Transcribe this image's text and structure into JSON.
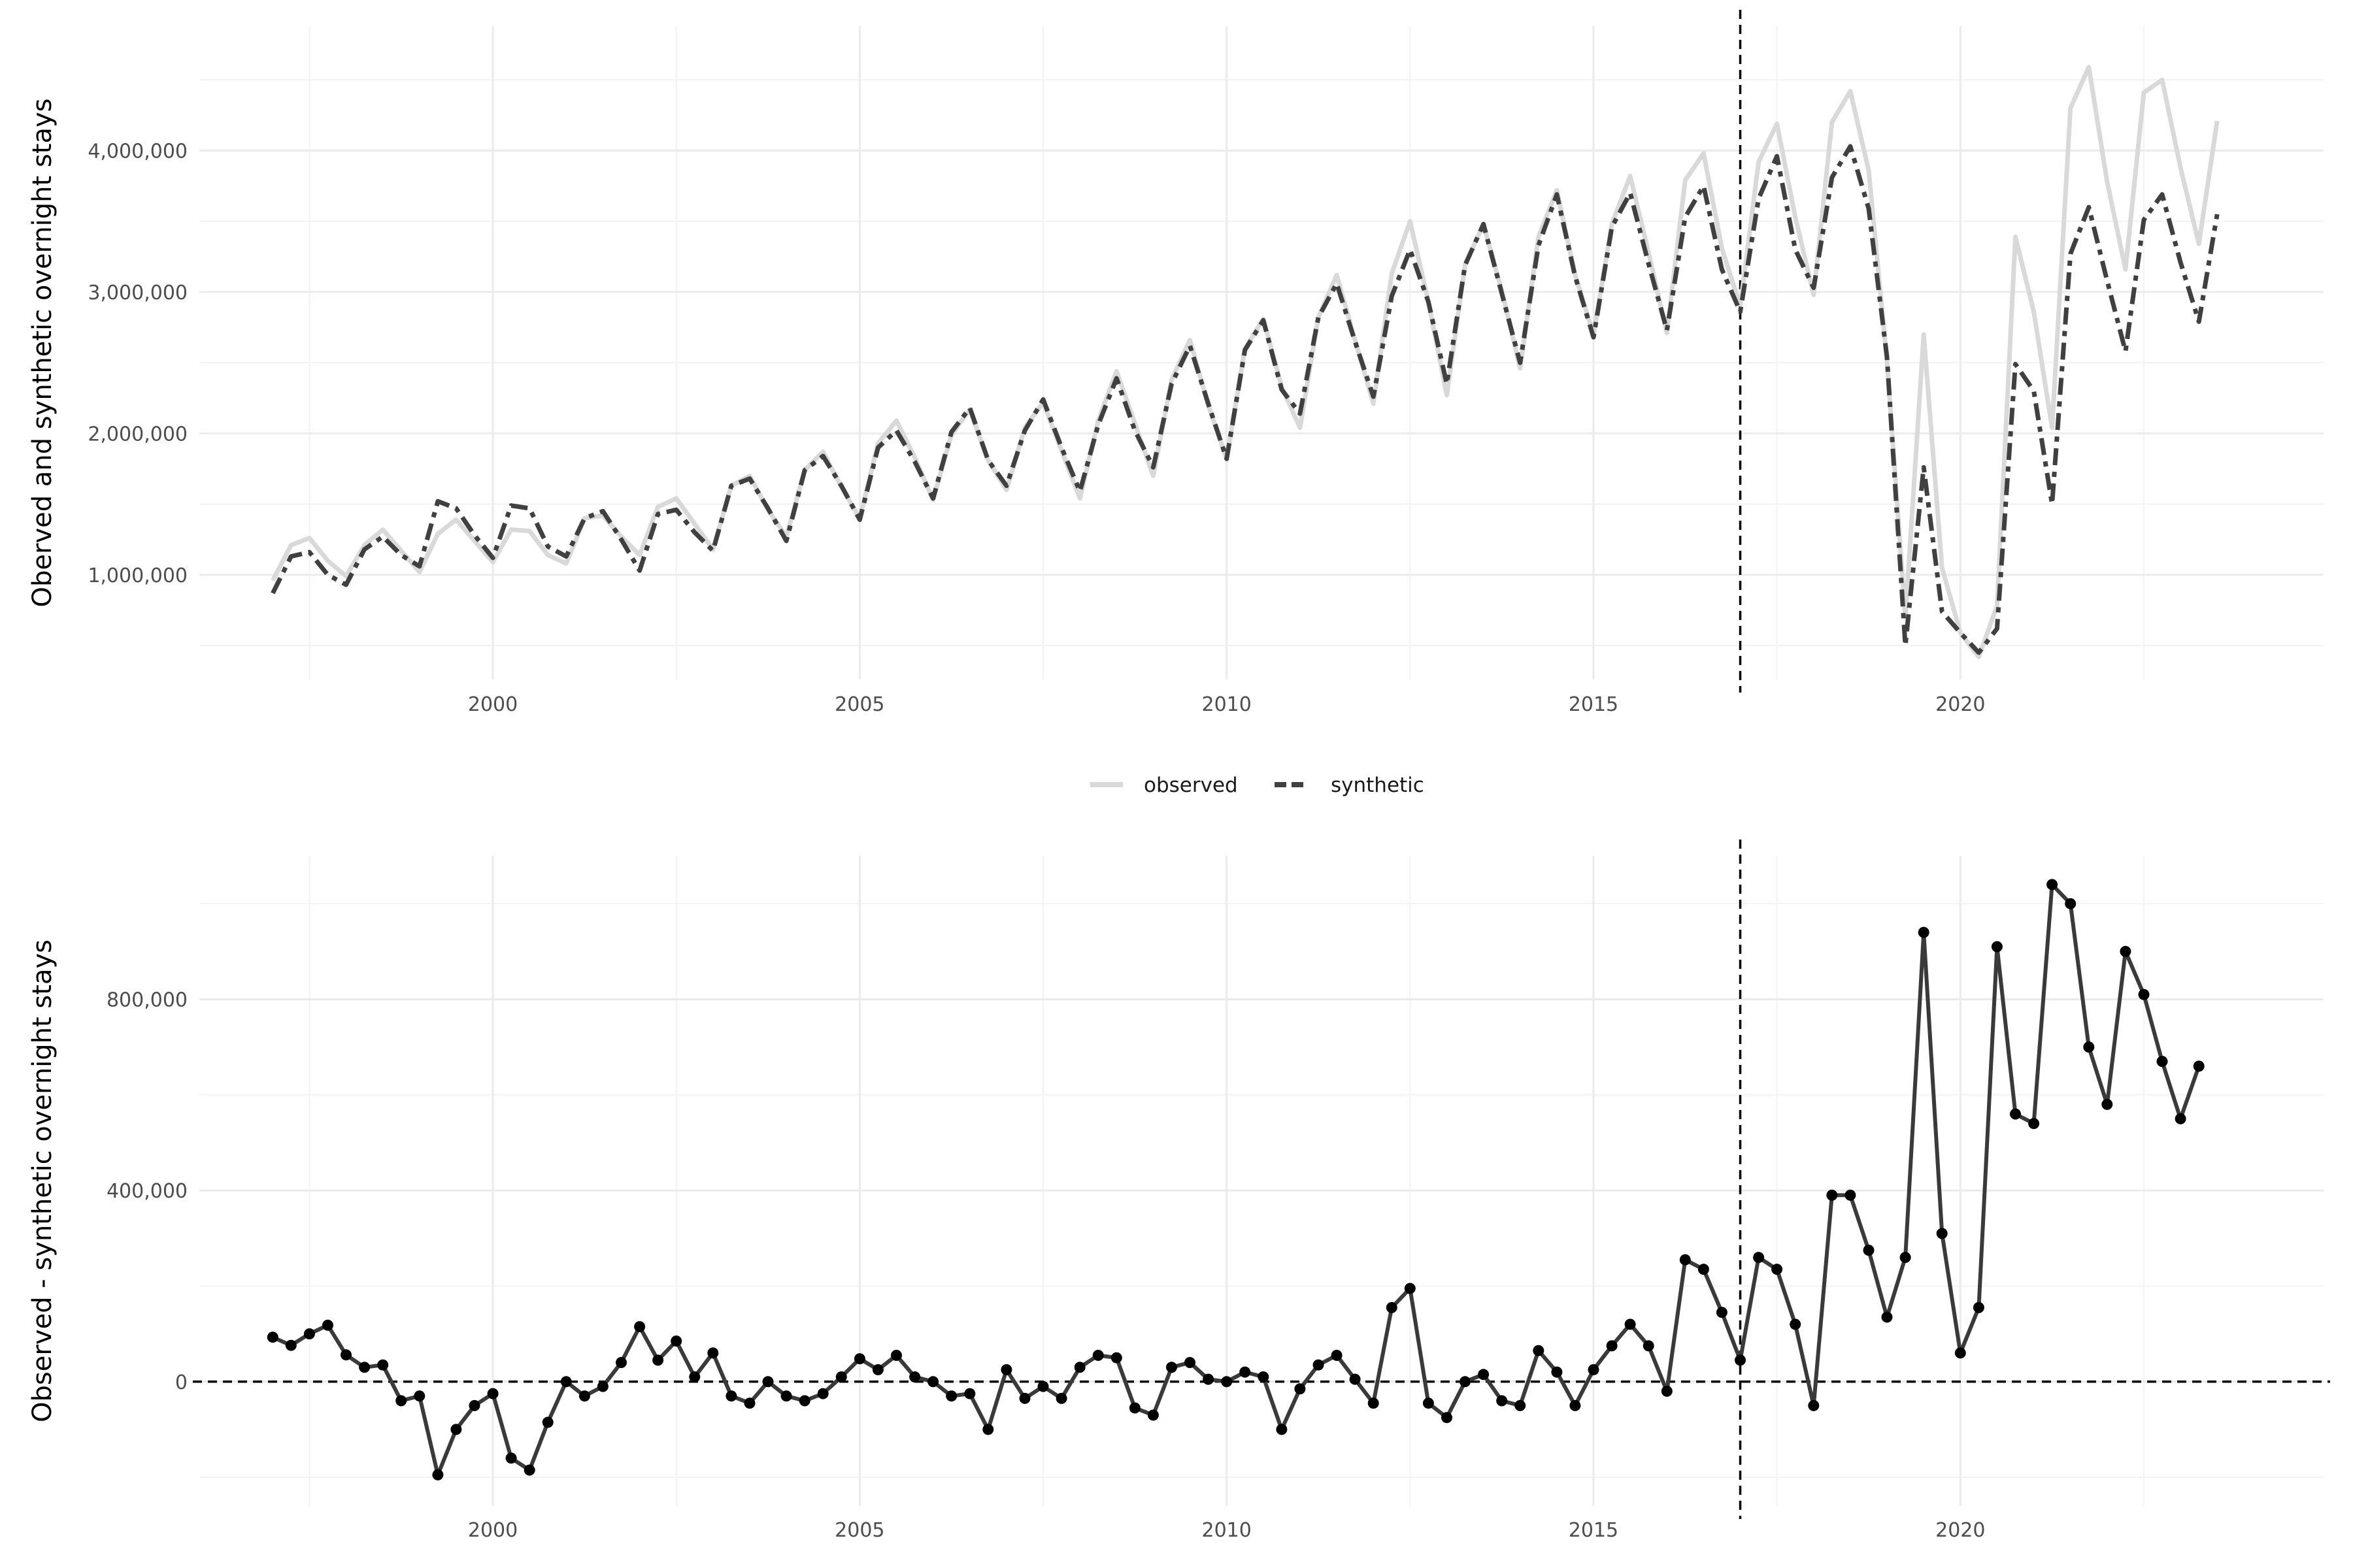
{
  "colors": {
    "observed": "#d9d9d9",
    "synthetic": "#404040",
    "difference": "#3a3a3a",
    "points": "#000000",
    "grid_major": "#ebebeb",
    "grid_minor": "#f3f3f3",
    "reference_line": "#000000",
    "tick_text": "#4d4d4d",
    "axis_title": "#000000"
  },
  "legend": {
    "items": [
      {
        "key": "observed",
        "label": "observed"
      },
      {
        "key": "synthetic",
        "label": "synthetic"
      }
    ],
    "position": "between-panels"
  },
  "chart_data": [
    {
      "type": "line",
      "title": "",
      "xlabel": "",
      "ylabel": "Oberved and synthetic overnight stays",
      "xlim": [
        1996.0,
        2024.95
      ],
      "ylim": [
        260000,
        4880000
      ],
      "grid": true,
      "x_ticks": [
        {
          "value": 2000,
          "label": "2000"
        },
        {
          "value": 2005,
          "label": "2005"
        },
        {
          "value": 2010,
          "label": "2010"
        },
        {
          "value": 2015,
          "label": "2015"
        },
        {
          "value": 2020,
          "label": "2020"
        }
      ],
      "y_ticks": [
        {
          "value": 1000000,
          "label": "1,000,000"
        },
        {
          "value": 2000000,
          "label": "2,000,000"
        },
        {
          "value": 3000000,
          "label": "3,000,000"
        },
        {
          "value": 4000000,
          "label": "4,000,000"
        }
      ],
      "vline": 2017.0,
      "x_start": 1997.0,
      "x_step": 0.25,
      "series": [
        {
          "name": "observed",
          "style": "solid",
          "values": [
            960000,
            1210000,
            1260000,
            1100000,
            990000,
            1210000,
            1320000,
            1170000,
            1020000,
            1290000,
            1390000,
            1240000,
            1090000,
            1320000,
            1310000,
            1140000,
            1080000,
            1400000,
            1420000,
            1270000,
            1140000,
            1480000,
            1540000,
            1360000,
            1180000,
            1630000,
            1700000,
            1460000,
            1270000,
            1740000,
            1870000,
            1620000,
            1400000,
            1930000,
            2090000,
            1830000,
            1530000,
            1990000,
            2170000,
            1810000,
            1600000,
            2040000,
            2220000,
            1880000,
            1540000,
            2090000,
            2440000,
            2070000,
            1700000,
            2380000,
            2660000,
            2200000,
            1820000,
            2600000,
            2810000,
            2330000,
            2040000,
            2820000,
            3120000,
            2660000,
            2210000,
            3130000,
            3500000,
            2930000,
            2270000,
            3190000,
            3480000,
            3010000,
            2460000,
            3390000,
            3720000,
            3120000,
            2700000,
            3480000,
            3820000,
            3280000,
            2710000,
            3790000,
            3980000,
            3310000,
            2900000,
            3920000,
            4190000,
            3530000,
            2980000,
            4200000,
            4420000,
            3860000,
            2510000,
            700000,
            2700000,
            1050000,
            590000,
            420000,
            780000,
            3390000,
            2860000,
            2040000,
            4300000,
            4590000,
            3780000,
            3160000,
            4410000,
            4500000,
            3880000,
            3340000,
            4210000
          ]
        },
        {
          "name": "synthetic",
          "style": "dashed",
          "values": [
            870000,
            1130000,
            1160000,
            1000000,
            930000,
            1180000,
            1270000,
            1140000,
            1060000,
            1520000,
            1470000,
            1280000,
            1120000,
            1490000,
            1470000,
            1200000,
            1130000,
            1400000,
            1450000,
            1250000,
            1030000,
            1430000,
            1460000,
            1300000,
            1170000,
            1630000,
            1680000,
            1470000,
            1240000,
            1740000,
            1840000,
            1630000,
            1390000,
            1900000,
            2020000,
            1800000,
            1540000,
            2010000,
            2180000,
            1810000,
            1630000,
            2020000,
            2240000,
            1900000,
            1590000,
            2060000,
            2390000,
            2020000,
            1760000,
            2350000,
            2620000,
            2210000,
            1820000,
            2590000,
            2800000,
            2310000,
            2140000,
            2820000,
            3060000,
            2650000,
            2260000,
            2970000,
            3300000,
            2930000,
            2350000,
            3190000,
            3480000,
            2990000,
            2500000,
            3330000,
            3690000,
            3110000,
            2680000,
            3460000,
            3700000,
            3200000,
            2730000,
            3530000,
            3750000,
            3160000,
            2860000,
            3660000,
            3960000,
            3300000,
            3030000,
            3810000,
            4030000,
            3590000,
            2540000,
            500000,
            1760000,
            740000,
            590000,
            450000,
            620000,
            2490000,
            2300000,
            1500000,
            3270000,
            3600000,
            3080000,
            2580000,
            3510000,
            3690000,
            3210000,
            2790000,
            3550000
          ]
        }
      ]
    },
    {
      "type": "line",
      "title": "",
      "xlabel": "",
      "ylabel": "Observed - synthetic overnight stays",
      "xlim": [
        1996.0,
        2024.95
      ],
      "ylim": [
        -260000,
        1100000
      ],
      "grid": true,
      "x_ticks": [
        {
          "value": 2000,
          "label": "2000"
        },
        {
          "value": 2005,
          "label": "2005"
        },
        {
          "value": 2010,
          "label": "2010"
        },
        {
          "value": 2015,
          "label": "2015"
        },
        {
          "value": 2020,
          "label": "2020"
        }
      ],
      "y_ticks": [
        {
          "value": 0,
          "label": "0"
        },
        {
          "value": 400000,
          "label": "400,000"
        },
        {
          "value": 800000,
          "label": "800,000"
        }
      ],
      "vline": 2017.0,
      "hline": 0,
      "x_start": 1997.0,
      "x_step": 0.25,
      "series": [
        {
          "name": "",
          "markers": true,
          "values": [
            93000,
            76000,
            100000,
            118000,
            56000,
            30000,
            35000,
            -40000,
            -30000,
            -195000,
            -100000,
            -50000,
            -25000,
            -160000,
            -185000,
            -85000,
            0,
            -30000,
            -10000,
            40000,
            115000,
            45000,
            85000,
            10000,
            60000,
            -30000,
            -45000,
            0,
            -30000,
            -40000,
            -25000,
            10000,
            48000,
            25000,
            55000,
            10000,
            0,
            -30000,
            -25000,
            -100000,
            25000,
            -35000,
            -10000,
            -35000,
            30000,
            55000,
            50000,
            -55000,
            -70000,
            30000,
            40000,
            5000,
            0,
            20000,
            10000,
            -100000,
            -15000,
            35000,
            55000,
            5000,
            -45000,
            155000,
            195000,
            -45000,
            -75000,
            0,
            15000,
            -40000,
            -50000,
            65000,
            20000,
            -50000,
            25000,
            75000,
            120000,
            75000,
            -20000,
            255000,
            235000,
            145000,
            45000,
            260000,
            235000,
            120000,
            -50000,
            390000,
            390000,
            275000,
            135000,
            260000,
            940000,
            310000,
            60000,
            155000,
            910000,
            560000,
            540000,
            1040000,
            1000000,
            700000,
            580000,
            900000,
            810000,
            670000,
            550000,
            660000
          ]
        }
      ]
    }
  ]
}
